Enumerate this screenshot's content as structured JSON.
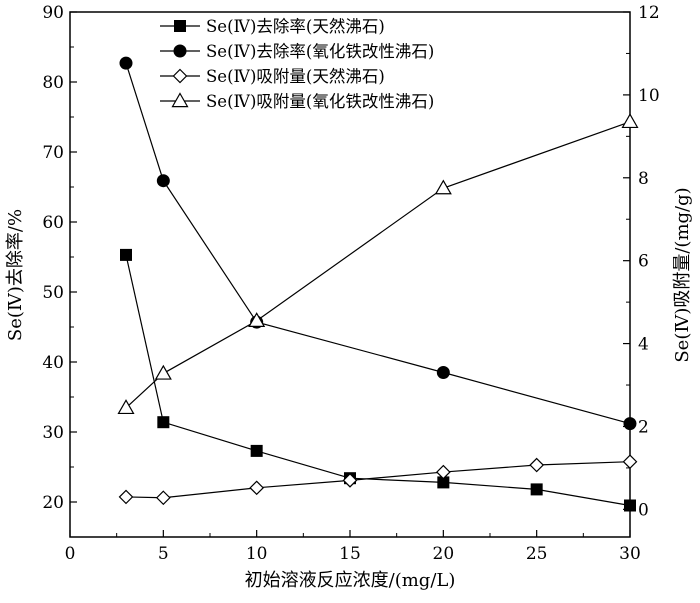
{
  "chart_data": {
    "type": "line",
    "title": "",
    "xlabel": "初始溶液反应浓度/(mg/L)",
    "ylabel_left": "Se(Ⅳ)去除率/%",
    "ylabel_right": "Se(Ⅳ)吸附量/(mg/g)",
    "xlim": [
      0,
      30
    ],
    "ylim_left": [
      15,
      90
    ],
    "ylim_right": [
      -0.6666667,
      12
    ],
    "x_ticks": [
      "0",
      "5",
      "10",
      "15",
      "20",
      "25",
      "30"
    ],
    "y_left_ticks": [
      "20",
      "30",
      "40",
      "50",
      "60",
      "70",
      "80",
      "90"
    ],
    "y_right_ticks": [
      "0",
      "2",
      "4",
      "6",
      "8",
      "10",
      "12"
    ],
    "grid": false,
    "legend_position": "top-left",
    "series": [
      {
        "name": "Se(Ⅳ)去除率(天然沸石)",
        "axis": "left",
        "marker": "filled-square",
        "x": [
          3,
          5,
          10,
          15,
          20,
          25,
          30
        ],
        "values": [
          55.3,
          31.4,
          27.3,
          23.4,
          22.8,
          21.8,
          19.5
        ]
      },
      {
        "name": "Se(Ⅳ)去除率(氧化铁改性沸石)",
        "axis": "left",
        "marker": "filled-circle",
        "x": [
          3,
          5,
          10,
          20,
          30
        ],
        "values": [
          82.7,
          65.9,
          45.7,
          38.5,
          31.2
        ]
      },
      {
        "name": "Se(Ⅳ)吸附量(天然沸石)",
        "axis": "right",
        "marker": "open-diamond",
        "x": [
          3,
          5,
          10,
          15,
          20,
          25,
          30
        ],
        "values": [
          0.3,
          0.28,
          0.52,
          0.7,
          0.9,
          1.07,
          1.15
        ]
      },
      {
        "name": "Se(Ⅳ)吸附量(氧化铁改性沸石)",
        "axis": "right",
        "marker": "open-triangle",
        "x": [
          3,
          5,
          10,
          20,
          30
        ],
        "values": [
          2.45,
          3.28,
          4.55,
          7.75,
          9.35
        ]
      }
    ]
  }
}
